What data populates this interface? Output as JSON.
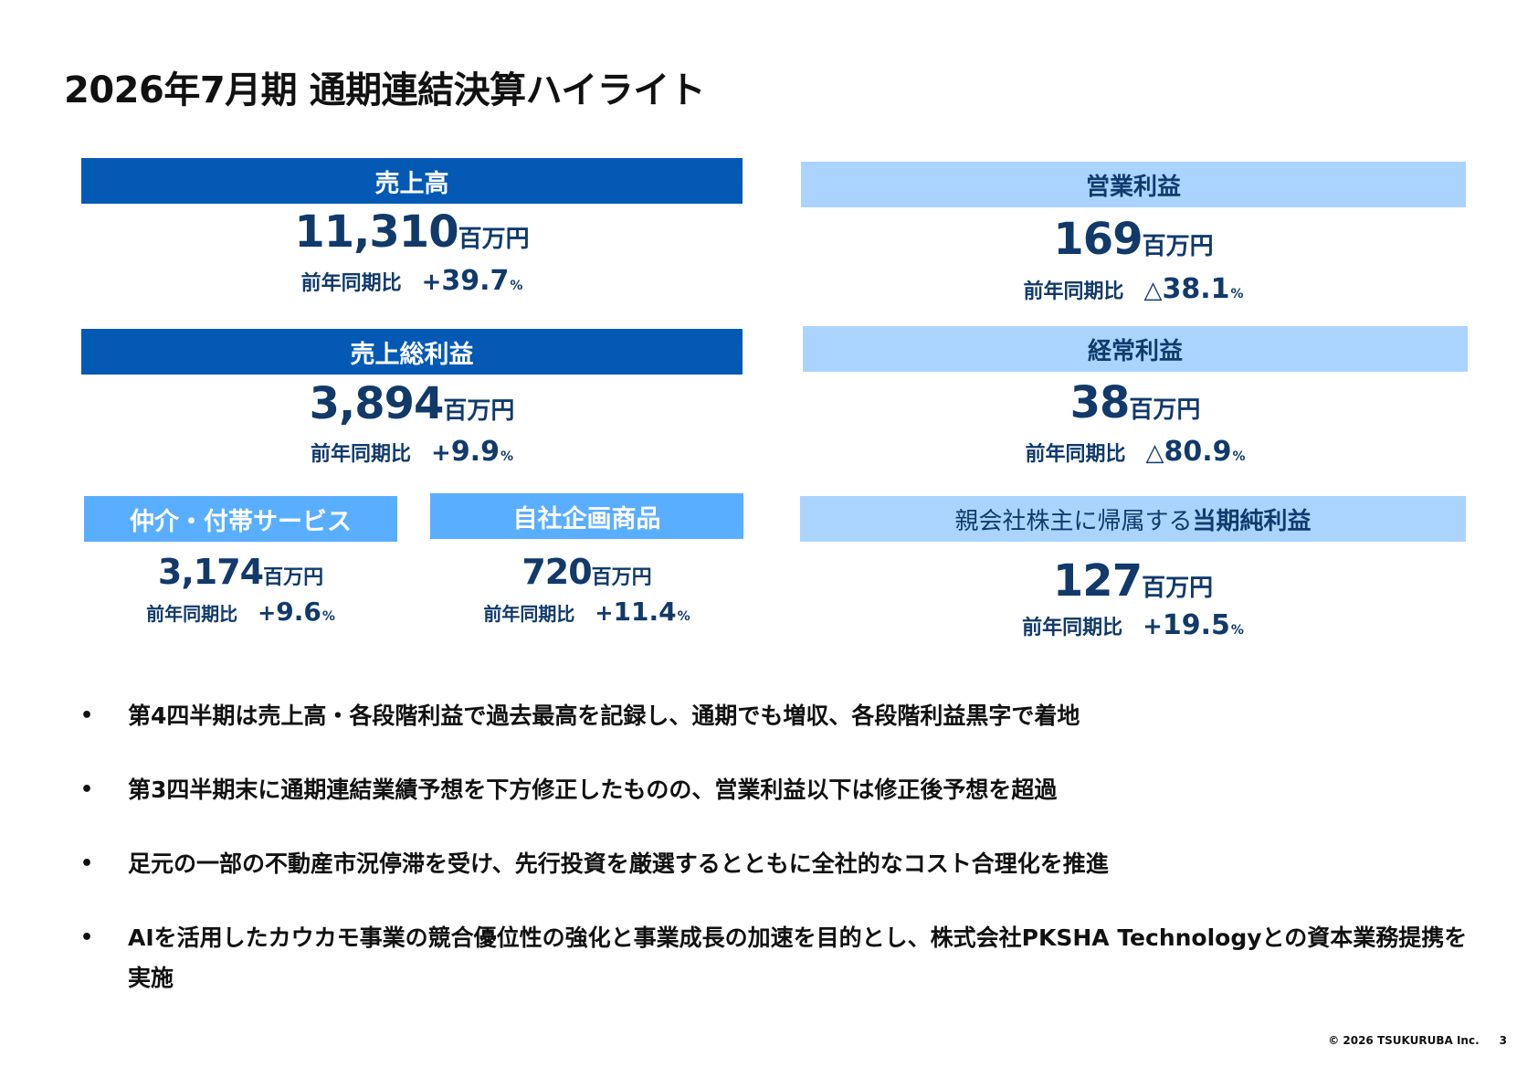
{
  "title": "2026年7月期 通期連結決算ハイライト",
  "colors": {
    "dark_header": "#0359b4",
    "mid_header": "#5aaeff",
    "light_header": "#aad4fd",
    "value_text": "#113a6b"
  },
  "yoy_label": "前年同期比",
  "unit": "百万円",
  "metrics": {
    "sales": {
      "label": "売上高",
      "value": "11,310",
      "change_sign": "+",
      "change": "39.7",
      "pct": "%"
    },
    "gross_profit": {
      "label": "売上総利益",
      "value": "3,894",
      "change_sign": "+",
      "change": "9.9",
      "pct": "%"
    },
    "brokerage": {
      "label": "仲介・付帯サービス",
      "value": "3,174",
      "change_sign": "+",
      "change": "9.6",
      "pct": "%"
    },
    "own_products": {
      "label": "自社企画商品",
      "value": "720",
      "change_sign": "+",
      "change": "11.4",
      "pct": "%"
    },
    "operating_profit": {
      "label": "営業利益",
      "value": "169",
      "change_sign": "△",
      "change": "38.1",
      "pct": "%"
    },
    "ordinary_profit": {
      "label": "経常利益",
      "value": "38",
      "change_sign": "△",
      "change": "80.9",
      "pct": "%"
    },
    "net_profit": {
      "label_prefix": "親会社株主に帰属する",
      "label_main": "当期純利益",
      "value": "127",
      "change_sign": "+",
      "change": "19.5",
      "pct": "%"
    }
  },
  "bullets": [
    "第4四半期は売上高・各段階利益で過去最高を記録し、通期でも増収、各段階利益黒字で着地",
    "第3四半期末に通期連結業績予想を下方修正したものの、営業利益以下は修正後予想を超過",
    "足元の一部の不動産市況停滞を受け、先行投資を厳選するとともに全社的なコスト合理化を推進",
    "AIを活用したカウカモ事業の競合優位性の強化と事業成長の加速を目的とし、株式会社PKSHA Technologyとの資本業務提携を実施"
  ],
  "bullet_marker": "•",
  "footer": {
    "copyright": "© 2026 TSUKURUBA Inc.",
    "page": "3"
  }
}
